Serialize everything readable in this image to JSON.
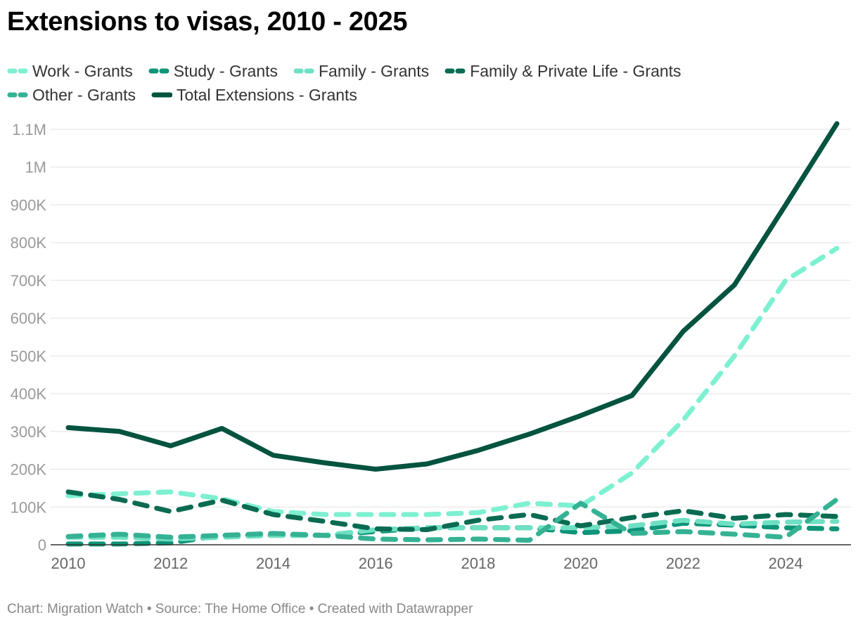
{
  "title": "Extensions to visas, 2010 - 2025",
  "footer": "Chart: Migration Watch • Source: The Home Office • Created with Datawrapper",
  "chart_data": {
    "type": "line",
    "title": "Extensions to visas, 2010 - 2025",
    "xlabel": "",
    "ylabel": "",
    "x": [
      2010,
      2011,
      2012,
      2013,
      2014,
      2015,
      2016,
      2017,
      2018,
      2019,
      2020,
      2021,
      2022,
      2023,
      2024,
      2025
    ],
    "ylim": [
      0,
      1100000
    ],
    "y_ticks": [
      0,
      100000,
      200000,
      300000,
      400000,
      500000,
      600000,
      700000,
      800000,
      900000,
      1000000,
      1100000
    ],
    "y_tick_labels": [
      "0",
      "100K",
      "200K",
      "300K",
      "400K",
      "500K",
      "600K",
      "700K",
      "800K",
      "900K",
      "1M",
      "1.1M"
    ],
    "x_ticks": [
      2010,
      2012,
      2014,
      2016,
      2018,
      2020,
      2022,
      2024
    ],
    "x_tick_labels": [
      "2010",
      "2012",
      "2014",
      "2016",
      "2018",
      "2020",
      "2022",
      "2024"
    ],
    "grid": true,
    "legend_position": "top",
    "series": [
      {
        "name": "Work - Grants",
        "color": "#7ef0d2",
        "style": "dashed",
        "values": [
          130000,
          135000,
          140000,
          122000,
          88000,
          80000,
          80000,
          80000,
          85000,
          110000,
          103000,
          190000,
          330000,
          500000,
          700000,
          785000
        ]
      },
      {
        "name": "Study - Grants",
        "color": "#0e9478",
        "style": "dashed",
        "values": [
          2000,
          2000,
          5000,
          25000,
          25000,
          25000,
          35000,
          45000,
          45000,
          45000,
          32000,
          37000,
          57000,
          52000,
          45000,
          42000
        ]
      },
      {
        "name": "Family - Grants",
        "color": "#6fe0c3",
        "style": "dashed",
        "values": [
          20000,
          20000,
          15000,
          20000,
          25000,
          25000,
          40000,
          45000,
          45000,
          45000,
          45000,
          50000,
          65000,
          55000,
          60000,
          62000
        ]
      },
      {
        "name": "Family & Private Life - Grants",
        "color": "#0a6b52",
        "style": "dashed",
        "values": [
          140000,
          120000,
          88000,
          118000,
          80000,
          62000,
          42000,
          40000,
          65000,
          80000,
          50000,
          72000,
          90000,
          70000,
          80000,
          75000
        ]
      },
      {
        "name": "Other - Grants",
        "color": "#35b294",
        "style": "dashed",
        "values": [
          22000,
          28000,
          20000,
          25000,
          30000,
          25000,
          15000,
          13000,
          15000,
          12000,
          110000,
          30000,
          35000,
          28000,
          20000,
          120000
        ]
      },
      {
        "name": "Total Extensions - Grants",
        "color": "#02533f",
        "style": "solid",
        "values": [
          310000,
          300000,
          262000,
          308000,
          237000,
          217000,
          200000,
          214000,
          250000,
          293000,
          342000,
          395000,
          565000,
          688000,
          900000,
          1115000
        ]
      }
    ]
  }
}
